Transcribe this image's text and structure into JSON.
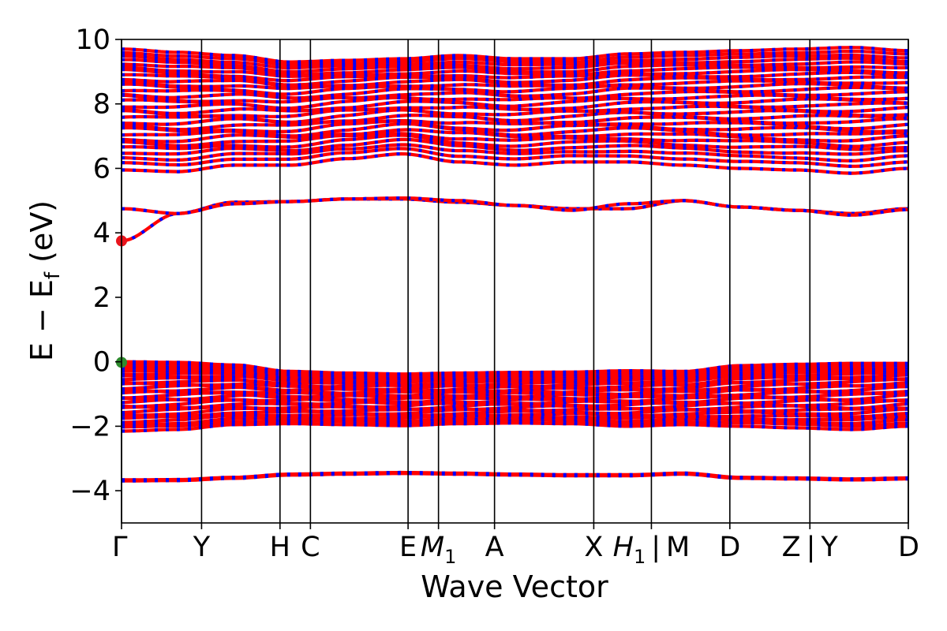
{
  "chart_data": {
    "type": "line",
    "title": "",
    "xlabel": "Wave Vector",
    "ylabel_parts": {
      "main": "E − E",
      "sub": "f",
      "unit": " (eV)"
    },
    "ylim": [
      -5,
      10
    ],
    "yticks": [
      {
        "value": 10,
        "label": "10"
      },
      {
        "value": 8,
        "label": "8"
      },
      {
        "value": 6,
        "label": "6"
      },
      {
        "value": 4,
        "label": "4"
      },
      {
        "value": 2,
        "label": "2"
      },
      {
        "value": 0,
        "label": "0"
      },
      {
        "value": -2,
        "label": "−2"
      },
      {
        "value": -4,
        "label": "−4"
      }
    ],
    "kpoints": [
      {
        "pos": 0.0,
        "label": "Γ"
      },
      {
        "pos": 1.0,
        "label": "Y"
      },
      {
        "pos": 1.98,
        "label": "H"
      },
      {
        "pos": 2.36,
        "label": "C"
      },
      {
        "pos": 3.58,
        "label": "E"
      },
      {
        "pos": 3.96,
        "label": "M",
        "sub": "1"
      },
      {
        "pos": 4.66,
        "label": "A"
      },
      {
        "pos": 5.9,
        "label": "X"
      },
      {
        "pos": 6.62,
        "label": "H",
        "sub": "1",
        "suffix": " | M"
      },
      {
        "pos": 7.6,
        "label": "D"
      },
      {
        "pos": 8.6,
        "label": "Z | Y"
      },
      {
        "pos": 9.83,
        "label": "D"
      }
    ],
    "xlim": [
      0,
      9.83
    ],
    "markers": [
      {
        "x": 0.0,
        "y": 3.75,
        "color": "#e8141c",
        "role": "CBM"
      },
      {
        "x": 0.0,
        "y": -0.02,
        "color": "#2e8b2e",
        "role": "VBM"
      }
    ],
    "colors": {
      "band": "#ff0000",
      "dash": "#0000ff",
      "kline": "#000000"
    },
    "groups": [
      {
        "name": "deep",
        "count": 2,
        "spread": 0.03,
        "levels": [
          -3.68,
          -3.67,
          -3.6,
          -3.5,
          -3.47,
          -3.45,
          -3.47,
          -3.5,
          -3.52,
          -3.52,
          -3.47,
          -3.6,
          -3.62,
          -3.65,
          -3.62
        ]
      },
      {
        "name": "valence",
        "count": 32,
        "bottom": [
          -2.15,
          -2.1,
          -1.95,
          -1.92,
          -1.95,
          -1.98,
          -1.92,
          -1.9,
          -1.92,
          -2.0,
          -1.95,
          -2.0,
          -2.05,
          -2.1,
          -2.0
        ],
        "top": [
          0.0,
          -0.02,
          -0.1,
          -0.3,
          -0.35,
          -0.38,
          -0.35,
          -0.33,
          -0.32,
          -0.28,
          -0.3,
          -0.12,
          -0.08,
          -0.05,
          -0.05
        ],
        "gaps": [
          0.12,
          0.46,
          0.55,
          0.72
        ]
      },
      {
        "name": "conduction-low",
        "curves": [
          [
            3.75,
            4.6,
            4.95,
            4.97,
            5.05,
            5.05,
            4.95,
            4.85,
            4.75,
            4.75,
            5.0,
            4.8,
            4.7,
            4.6,
            4.75
          ],
          [
            4.75,
            4.6,
            4.9,
            4.97,
            5.05,
            5.08,
            5.0,
            4.85,
            4.7,
            4.9,
            5.0,
            4.8,
            4.7,
            4.55,
            4.72
          ]
        ]
      },
      {
        "name": "conduction-high",
        "count": 30,
        "bottom": [
          5.95,
          5.9,
          6.1,
          6.1,
          6.3,
          6.45,
          6.2,
          6.1,
          6.2,
          6.2,
          6.1,
          6.0,
          5.95,
          5.85,
          6.0
        ],
        "top": [
          9.7,
          9.6,
          9.5,
          9.3,
          9.35,
          9.4,
          9.5,
          9.4,
          9.4,
          9.55,
          9.6,
          9.65,
          9.7,
          9.75,
          9.65
        ]
      }
    ]
  }
}
